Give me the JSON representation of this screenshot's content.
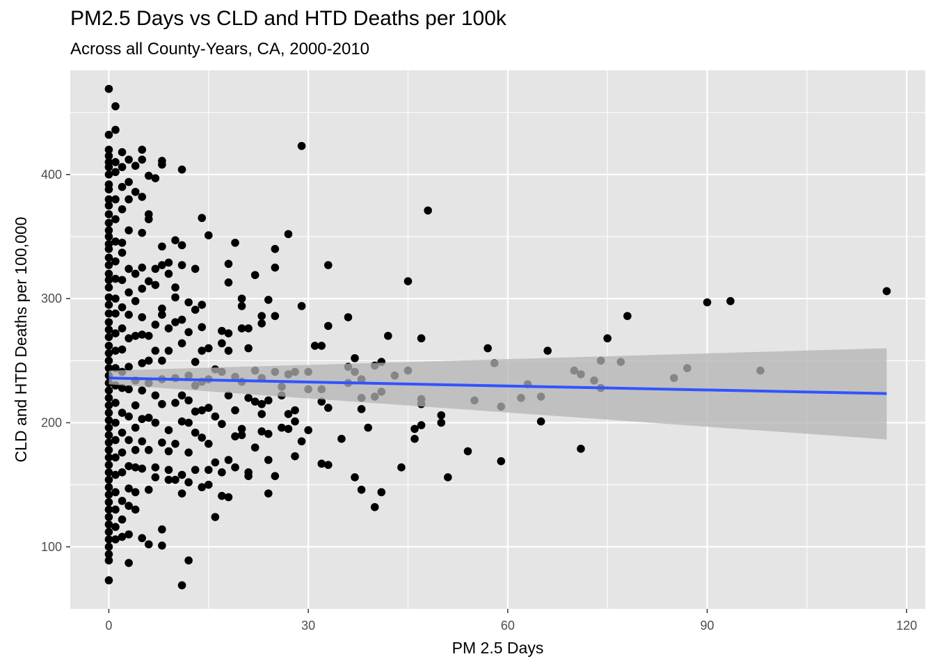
{
  "chart_data": {
    "type": "scatter",
    "title": "PM2.5 Days vs CLD and HTD Deaths per 100k",
    "subtitle": "Across all County-Years, CA, 2000-2010",
    "xlabel": "PM 2.5 Days",
    "ylabel": "CLD and HTD Deaths per 100,000",
    "xlim": [
      -5.8,
      122.8
    ],
    "ylim": [
      50,
      484
    ],
    "x_ticks": [
      0,
      30,
      60,
      90,
      120
    ],
    "y_ticks": [
      100,
      200,
      300,
      400
    ],
    "x_tick_labels": [
      "0",
      "30",
      "60",
      "90",
      "120"
    ],
    "y_tick_labels": [
      "100",
      "200",
      "300",
      "400"
    ],
    "grid": true,
    "colors": {
      "panel": "#e5e5e5",
      "grid": "#ffffff",
      "points": "#000000",
      "fit_line": "#3253ff",
      "ribbon": "#b3b3b3"
    },
    "trend": {
      "method": "linear",
      "x": [
        0,
        117
      ],
      "y": [
        236,
        223.5
      ],
      "ci_lower": [
        231,
        186.5
      ],
      "ci_upper": [
        242,
        260
      ]
    },
    "points": [
      [
        0,
        469
      ],
      [
        1,
        455
      ],
      [
        1,
        436
      ],
      [
        0,
        432
      ],
      [
        0,
        420
      ],
      [
        0,
        415
      ],
      [
        0,
        410
      ],
      [
        0,
        406
      ],
      [
        0,
        400
      ],
      [
        0,
        392
      ],
      [
        0,
        388
      ],
      [
        0,
        380
      ],
      [
        0,
        375
      ],
      [
        0,
        368
      ],
      [
        0,
        361
      ],
      [
        0,
        355
      ],
      [
        0,
        350
      ],
      [
        0,
        344
      ],
      [
        0,
        340
      ],
      [
        0,
        333
      ],
      [
        0,
        327
      ],
      [
        0,
        320
      ],
      [
        0,
        315
      ],
      [
        0,
        309
      ],
      [
        0,
        301
      ],
      [
        0,
        295
      ],
      [
        0,
        288
      ],
      [
        0,
        281
      ],
      [
        0,
        275
      ],
      [
        0,
        269
      ],
      [
        0,
        262
      ],
      [
        0,
        256
      ],
      [
        0,
        250
      ],
      [
        0,
        244
      ],
      [
        0,
        238
      ],
      [
        0,
        232
      ],
      [
        0,
        226
      ],
      [
        0,
        220
      ],
      [
        0,
        214
      ],
      [
        0,
        208
      ],
      [
        0,
        202
      ],
      [
        0,
        196
      ],
      [
        0,
        190
      ],
      [
        0,
        184
      ],
      [
        0,
        178
      ],
      [
        0,
        172
      ],
      [
        0,
        166
      ],
      [
        0,
        160
      ],
      [
        0,
        154
      ],
      [
        0,
        148
      ],
      [
        0,
        142
      ],
      [
        0,
        136
      ],
      [
        0,
        130
      ],
      [
        0,
        124
      ],
      [
        0,
        118
      ],
      [
        0,
        112
      ],
      [
        0,
        106
      ],
      [
        0,
        100
      ],
      [
        0,
        94
      ],
      [
        0,
        89
      ],
      [
        0,
        73
      ],
      [
        1,
        410
      ],
      [
        1,
        402
      ],
      [
        1,
        380
      ],
      [
        1,
        364
      ],
      [
        1,
        346
      ],
      [
        1,
        330
      ],
      [
        1,
        316
      ],
      [
        1,
        300
      ],
      [
        1,
        288
      ],
      [
        1,
        272
      ],
      [
        1,
        258
      ],
      [
        1,
        244
      ],
      [
        1,
        230
      ],
      [
        1,
        216
      ],
      [
        1,
        200
      ],
      [
        1,
        186
      ],
      [
        1,
        172
      ],
      [
        1,
        158
      ],
      [
        1,
        144
      ],
      [
        1,
        130
      ],
      [
        1,
        116
      ],
      [
        1,
        106
      ],
      [
        2,
        418
      ],
      [
        2,
        406
      ],
      [
        2,
        390
      ],
      [
        2,
        372
      ],
      [
        2,
        345
      ],
      [
        2,
        337
      ],
      [
        2,
        315
      ],
      [
        2,
        293
      ],
      [
        2,
        276
      ],
      [
        2,
        259
      ],
      [
        2,
        241
      ],
      [
        2,
        228
      ],
      [
        2,
        208
      ],
      [
        2,
        192
      ],
      [
        2,
        176
      ],
      [
        2,
        160
      ],
      [
        2,
        137
      ],
      [
        2,
        122
      ],
      [
        2,
        108
      ],
      [
        3,
        412
      ],
      [
        3,
        394
      ],
      [
        3,
        380
      ],
      [
        3,
        355
      ],
      [
        3,
        324
      ],
      [
        3,
        305
      ],
      [
        3,
        287
      ],
      [
        3,
        268
      ],
      [
        3,
        245
      ],
      [
        3,
        227
      ],
      [
        3,
        205
      ],
      [
        3,
        186
      ],
      [
        3,
        165
      ],
      [
        3,
        147
      ],
      [
        3,
        133
      ],
      [
        3,
        110
      ],
      [
        3,
        87
      ],
      [
        4,
        407
      ],
      [
        4,
        386
      ],
      [
        4,
        320
      ],
      [
        4,
        298
      ],
      [
        4,
        270
      ],
      [
        4,
        234
      ],
      [
        4,
        214
      ],
      [
        4,
        196
      ],
      [
        4,
        178
      ],
      [
        4,
        164
      ],
      [
        4,
        144
      ],
      [
        4,
        130
      ],
      [
        5,
        420
      ],
      [
        5,
        412
      ],
      [
        5,
        382
      ],
      [
        5,
        353
      ],
      [
        5,
        325
      ],
      [
        5,
        308
      ],
      [
        5,
        285
      ],
      [
        5,
        271
      ],
      [
        5,
        248
      ],
      [
        5,
        226
      ],
      [
        5,
        203
      ],
      [
        5,
        185
      ],
      [
        5,
        163
      ],
      [
        5,
        107
      ],
      [
        6,
        399
      ],
      [
        6,
        368
      ],
      [
        6,
        364
      ],
      [
        6,
        314
      ],
      [
        6,
        270
      ],
      [
        6,
        250
      ],
      [
        6,
        232
      ],
      [
        6,
        204
      ],
      [
        6,
        178
      ],
      [
        6,
        146
      ],
      [
        6,
        102
      ],
      [
        7,
        397
      ],
      [
        7,
        324
      ],
      [
        7,
        311
      ],
      [
        7,
        279
      ],
      [
        7,
        258
      ],
      [
        7,
        222
      ],
      [
        7,
        200
      ],
      [
        7,
        164
      ],
      [
        7,
        156
      ],
      [
        8,
        411
      ],
      [
        8,
        408
      ],
      [
        8,
        342
      ],
      [
        8,
        327
      ],
      [
        8,
        292
      ],
      [
        8,
        287
      ],
      [
        8,
        250
      ],
      [
        8,
        235
      ],
      [
        8,
        215
      ],
      [
        8,
        184
      ],
      [
        8,
        114
      ],
      [
        8,
        101
      ],
      [
        9,
        329
      ],
      [
        9,
        320
      ],
      [
        9,
        276
      ],
      [
        9,
        258
      ],
      [
        9,
        194
      ],
      [
        9,
        177
      ],
      [
        9,
        162
      ],
      [
        9,
        154
      ],
      [
        10,
        347
      ],
      [
        10,
        309
      ],
      [
        10,
        301
      ],
      [
        10,
        281
      ],
      [
        10,
        236
      ],
      [
        10,
        216
      ],
      [
        10,
        183
      ],
      [
        10,
        154
      ],
      [
        11,
        404
      ],
      [
        11,
        343
      ],
      [
        11,
        327
      ],
      [
        11,
        283
      ],
      [
        11,
        264
      ],
      [
        11,
        222
      ],
      [
        11,
        201
      ],
      [
        11,
        158
      ],
      [
        11,
        143
      ],
      [
        11,
        69
      ],
      [
        12,
        297
      ],
      [
        12,
        273
      ],
      [
        12,
        238
      ],
      [
        12,
        218
      ],
      [
        12,
        200
      ],
      [
        12,
        176
      ],
      [
        12,
        152
      ],
      [
        12,
        89
      ],
      [
        13,
        324
      ],
      [
        13,
        291
      ],
      [
        13,
        249
      ],
      [
        13,
        230
      ],
      [
        13,
        209
      ],
      [
        13,
        192
      ],
      [
        13,
        162
      ],
      [
        14,
        365
      ],
      [
        14,
        295
      ],
      [
        14,
        277
      ],
      [
        14,
        258
      ],
      [
        14,
        233
      ],
      [
        14,
        210
      ],
      [
        14,
        188
      ],
      [
        14,
        148
      ],
      [
        15,
        351
      ],
      [
        15,
        260
      ],
      [
        15,
        235
      ],
      [
        15,
        212
      ],
      [
        15,
        183
      ],
      [
        15,
        162
      ],
      [
        15,
        150
      ],
      [
        16,
        243
      ],
      [
        16,
        205
      ],
      [
        16,
        168
      ],
      [
        16,
        124
      ],
      [
        17,
        274
      ],
      [
        17,
        264
      ],
      [
        17,
        241
      ],
      [
        17,
        199
      ],
      [
        17,
        160
      ],
      [
        17,
        141
      ],
      [
        18,
        328
      ],
      [
        18,
        313
      ],
      [
        18,
        272
      ],
      [
        18,
        258
      ],
      [
        18,
        222
      ],
      [
        18,
        170
      ],
      [
        18,
        140
      ],
      [
        19,
        345
      ],
      [
        19,
        237
      ],
      [
        19,
        210
      ],
      [
        19,
        189
      ],
      [
        19,
        164
      ],
      [
        20,
        300
      ],
      [
        20,
        294
      ],
      [
        20,
        276
      ],
      [
        20,
        233
      ],
      [
        20,
        195
      ],
      [
        20,
        190
      ],
      [
        21,
        276
      ],
      [
        21,
        260
      ],
      [
        21,
        220
      ],
      [
        21,
        160
      ],
      [
        21,
        157
      ],
      [
        22,
        319
      ],
      [
        22,
        242
      ],
      [
        22,
        217
      ],
      [
        22,
        180
      ],
      [
        23,
        286
      ],
      [
        23,
        280
      ],
      [
        23,
        236
      ],
      [
        23,
        215
      ],
      [
        23,
        207
      ],
      [
        23,
        193
      ],
      [
        24,
        299
      ],
      [
        24,
        218
      ],
      [
        24,
        191
      ],
      [
        24,
        170
      ],
      [
        24,
        143
      ],
      [
        25,
        340
      ],
      [
        25,
        325
      ],
      [
        25,
        286
      ],
      [
        25,
        241
      ],
      [
        25,
        157
      ],
      [
        26,
        229
      ],
      [
        26,
        222
      ],
      [
        26,
        196
      ],
      [
        27,
        352
      ],
      [
        27,
        239
      ],
      [
        27,
        207
      ],
      [
        27,
        195
      ],
      [
        28,
        241
      ],
      [
        28,
        210
      ],
      [
        28,
        201
      ],
      [
        28,
        173
      ],
      [
        29,
        423
      ],
      [
        29,
        294
      ],
      [
        29,
        185
      ],
      [
        30,
        241
      ],
      [
        30,
        227
      ],
      [
        30,
        194
      ],
      [
        31,
        262
      ],
      [
        32,
        262
      ],
      [
        32,
        227
      ],
      [
        32,
        217
      ],
      [
        32,
        167
      ],
      [
        33,
        327
      ],
      [
        33,
        278
      ],
      [
        33,
        212
      ],
      [
        33,
        166
      ],
      [
        35,
        187
      ],
      [
        36,
        285
      ],
      [
        36,
        245
      ],
      [
        36,
        232
      ],
      [
        37,
        252
      ],
      [
        37,
        241
      ],
      [
        37,
        156
      ],
      [
        38,
        235
      ],
      [
        38,
        220
      ],
      [
        38,
        211
      ],
      [
        38,
        146
      ],
      [
        39,
        196
      ],
      [
        40,
        246
      ],
      [
        40,
        221
      ],
      [
        40,
        132
      ],
      [
        41,
        249
      ],
      [
        41,
        225
      ],
      [
        41,
        144
      ],
      [
        42,
        270
      ],
      [
        43,
        238
      ],
      [
        44,
        164
      ],
      [
        45,
        314
      ],
      [
        45,
        242
      ],
      [
        46,
        187
      ],
      [
        46,
        195
      ],
      [
        47,
        268
      ],
      [
        47,
        219
      ],
      [
        47,
        215
      ],
      [
        47,
        198
      ],
      [
        48,
        371
      ],
      [
        50,
        206
      ],
      [
        50,
        200
      ],
      [
        51,
        156
      ],
      [
        54,
        177
      ],
      [
        55,
        218
      ],
      [
        57,
        260
      ],
      [
        58,
        248
      ],
      [
        59,
        213
      ],
      [
        59,
        169
      ],
      [
        62,
        220
      ],
      [
        63,
        231
      ],
      [
        65,
        221
      ],
      [
        65,
        201
      ],
      [
        66,
        258
      ],
      [
        70,
        242
      ],
      [
        71,
        239
      ],
      [
        71,
        179
      ],
      [
        73,
        234
      ],
      [
        74,
        250
      ],
      [
        74,
        228
      ],
      [
        75,
        268
      ],
      [
        77,
        249
      ],
      [
        78,
        286
      ],
      [
        85,
        236
      ],
      [
        87,
        244
      ],
      [
        90,
        297
      ],
      [
        93.5,
        298
      ],
      [
        98,
        242
      ],
      [
        117,
        306
      ]
    ]
  }
}
